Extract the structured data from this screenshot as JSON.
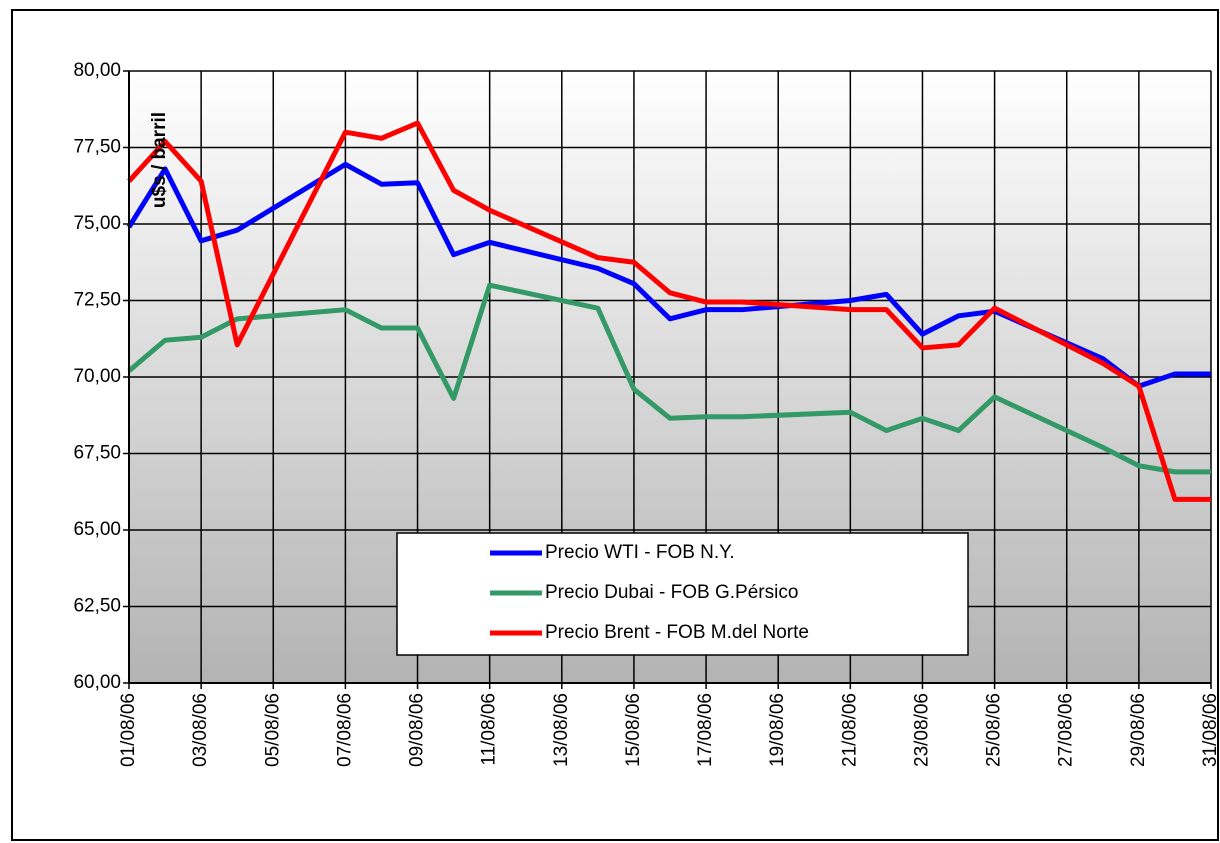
{
  "chart_data": {
    "type": "line",
    "y_label": "u$s / barril",
    "x": [
      "01/08/06",
      "02/08/06",
      "03/08/06",
      "04/08/06",
      "07/08/06",
      "08/08/06",
      "09/08/06",
      "10/08/06",
      "11/08/06",
      "14/08/06",
      "15/08/06",
      "16/08/06",
      "17/08/06",
      "18/08/06",
      "21/08/06",
      "22/08/06",
      "23/08/06",
      "24/08/06",
      "25/08/06",
      "28/08/06",
      "29/08/06",
      "30/08/06",
      "31/08/06"
    ],
    "xlim": [
      "01/08/06",
      "31/08/06"
    ],
    "xticks": [
      "01/08/06",
      "03/08/06",
      "05/08/06",
      "07/08/06",
      "09/08/06",
      "11/08/06",
      "13/08/06",
      "15/08/06",
      "17/08/06",
      "19/08/06",
      "21/08/06",
      "23/08/06",
      "25/08/06",
      "27/08/06",
      "29/08/06",
      "31/08/06"
    ],
    "ylim": [
      60,
      80
    ],
    "yticks": [
      {
        "value": 60,
        "label": "60,00"
      },
      {
        "value": 62.5,
        "label": "62,50"
      },
      {
        "value": 65,
        "label": "65,00"
      },
      {
        "value": 67.5,
        "label": "67,50"
      },
      {
        "value": 70,
        "label": "70,00"
      },
      {
        "value": 72.5,
        "label": "72,50"
      },
      {
        "value": 75,
        "label": "75,00"
      },
      {
        "value": 77.5,
        "label": "77,50"
      },
      {
        "value": 80,
        "label": "80,00"
      }
    ],
    "grid": true,
    "series": [
      {
        "name": "Precio WTI - FOB N.Y.",
        "color": "#0000ff",
        "values": [
          74.9,
          76.8,
          74.45,
          74.8,
          76.95,
          76.3,
          76.35,
          74.0,
          74.4,
          73.55,
          73.05,
          71.9,
          72.2,
          72.2,
          72.5,
          72.7,
          71.4,
          72.0,
          72.15,
          70.6,
          69.7,
          70.1,
          70.1
        ]
      },
      {
        "name": "Precio Dubai - FOB G.Pérsico",
        "color": "#339966",
        "values": [
          70.2,
          71.2,
          71.3,
          71.9,
          72.2,
          71.6,
          71.6,
          69.3,
          73.0,
          72.25,
          69.6,
          68.65,
          68.7,
          68.7,
          68.85,
          68.25,
          68.65,
          68.25,
          69.35,
          67.7,
          67.1,
          66.9,
          66.9
        ]
      },
      {
        "name": "Precio Brent - FOB M.del Norte",
        "color": "#ff0000",
        "values": [
          76.4,
          77.7,
          76.4,
          71.05,
          78.0,
          77.8,
          78.3,
          76.1,
          75.45,
          73.9,
          73.75,
          72.75,
          72.45,
          72.45,
          72.2,
          72.2,
          70.95,
          71.05,
          72.25,
          70.45,
          69.7,
          66.0,
          66.0
        ]
      }
    ]
  }
}
